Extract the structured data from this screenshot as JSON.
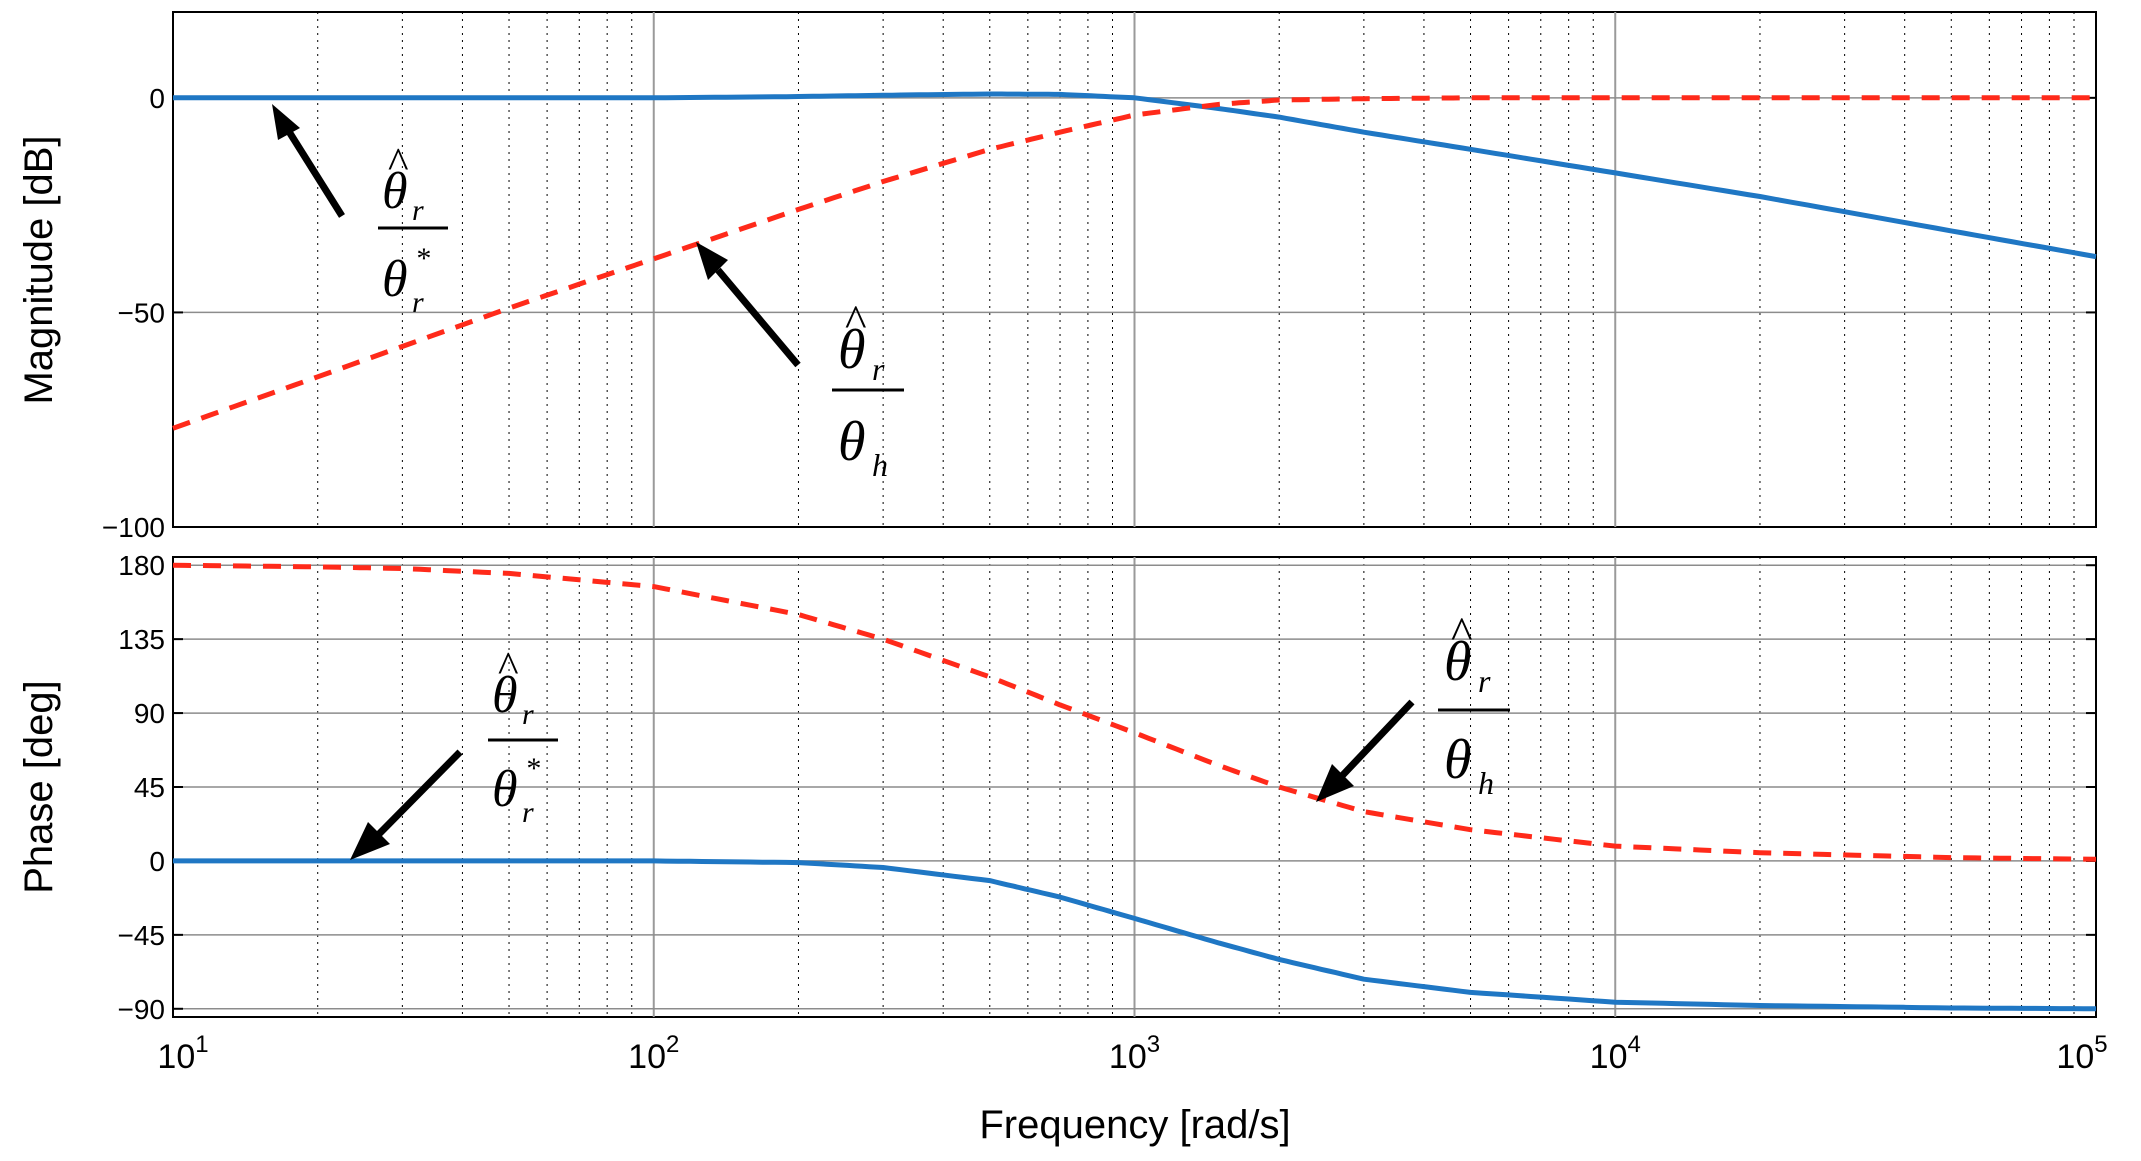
{
  "chart_data": {
    "type": "line",
    "xscale": "log",
    "xlim": [
      10,
      100000
    ],
    "xlabel": "Frequency [rad/s]",
    "xtick_labels": [
      {
        "base": "10",
        "exp": "1"
      },
      {
        "base": "10",
        "exp": "2"
      },
      {
        "base": "10",
        "exp": "3"
      },
      {
        "base": "10",
        "exp": "4"
      },
      {
        "base": "10",
        "exp": "5"
      }
    ],
    "magnitude": {
      "ylabel": "Magnitude [dB]",
      "ylim": [
        -100,
        20
      ],
      "yticks": [
        0,
        -50,
        -100
      ],
      "ytick_labels": [
        "0",
        "−50",
        "−100"
      ],
      "series": [
        {
          "name": "theta_r_hat / theta_r_star",
          "color": "#1f77c4",
          "style": "solid",
          "x": [
            10,
            20,
            50,
            100,
            200,
            300,
            500,
            700,
            1000,
            1500,
            2000,
            3000,
            5000,
            10000,
            20000,
            50000,
            100000
          ],
          "y": [
            0,
            0,
            0,
            0,
            0.3,
            0.6,
            0.9,
            0.8,
            0,
            -2.5,
            -4.5,
            -8,
            -12,
            -17.5,
            -23,
            -31,
            -37
          ]
        },
        {
          "name": "theta_r_hat / theta_h",
          "color": "#ff2a1a",
          "style": "dashed",
          "x": [
            10,
            20,
            50,
            100,
            200,
            300,
            500,
            700,
            1000,
            1500,
            2000,
            3000,
            5000,
            10000,
            100000
          ],
          "y": [
            -77,
            -65,
            -49,
            -37.5,
            -26,
            -19.5,
            -12,
            -8,
            -4,
            -1.5,
            -0.5,
            -0.2,
            0,
            0,
            0
          ]
        }
      ],
      "annotations": [
        {
          "numerator": "θ",
          "num_sub": "r",
          "denominator": "θ",
          "den_sub": "r",
          "den_sup": "*",
          "target": "theta_r_hat / theta_r_star"
        },
        {
          "numerator": "θ",
          "num_sub": "r",
          "denominator": "θ",
          "den_sub": "h",
          "target": "theta_r_hat / theta_h"
        }
      ]
    },
    "phase": {
      "ylabel": "Phase [deg]",
      "ylim": [
        -95,
        185
      ],
      "yticks": [
        180,
        135,
        90,
        45,
        0,
        -45,
        -90
      ],
      "ytick_labels": [
        "180",
        "135",
        "90",
        "45",
        "0",
        "−45",
        "−90"
      ],
      "series": [
        {
          "name": "theta_r_hat / theta_r_star",
          "color": "#1f77c4",
          "style": "solid",
          "x": [
            10,
            50,
            100,
            200,
            300,
            500,
            700,
            1000,
            1500,
            2000,
            3000,
            5000,
            10000,
            20000,
            50000,
            100000
          ],
          "y": [
            0,
            0,
            0,
            -1,
            -4,
            -12,
            -22,
            -35,
            -50,
            -60,
            -72,
            -80,
            -86,
            -88,
            -89.5,
            -90
          ]
        },
        {
          "name": "theta_r_hat / theta_h",
          "color": "#ff2a1a",
          "style": "dashed",
          "x": [
            10,
            20,
            30,
            50,
            100,
            200,
            300,
            500,
            700,
            1000,
            1500,
            2000,
            3000,
            5000,
            10000,
            20000,
            50000,
            100000
          ],
          "y": [
            180,
            179,
            178,
            175,
            167,
            150,
            135,
            112,
            95,
            78,
            58,
            45,
            30,
            19,
            9,
            5,
            2,
            1
          ]
        }
      ],
      "annotations": [
        {
          "numerator": "θ",
          "num_sub": "r",
          "denominator": "θ",
          "den_sub": "r",
          "den_sup": "*",
          "target": "theta_r_hat / theta_r_star"
        },
        {
          "numerator": "θ",
          "num_sub": "r",
          "denominator": "θ",
          "den_sub": "h",
          "target": "theta_r_hat / theta_h"
        }
      ]
    }
  }
}
